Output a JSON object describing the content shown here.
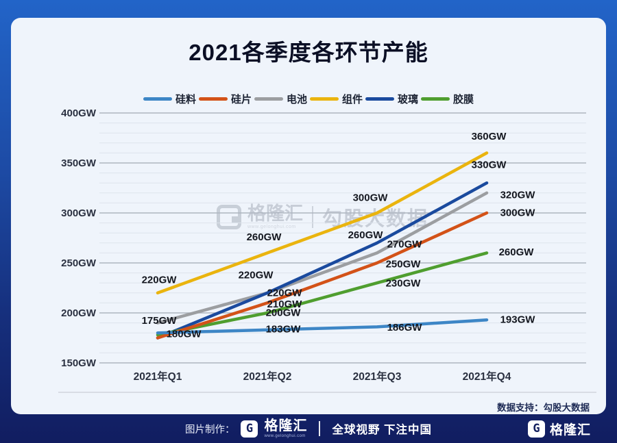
{
  "title": "2021各季度各环节产能",
  "watermark": {
    "logo_letter": "G",
    "brand": "格隆汇",
    "site": "www.gelonghui.com",
    "partner": "勾股大数据"
  },
  "footer_card": {
    "label": "数据支持：勾股大数据"
  },
  "bottom_bar": {
    "made_by": "图片制作：",
    "logo_letter": "G",
    "brand": "格隆汇",
    "brand_site": "www.gelonghui.com",
    "slogan": "全球视野 下注中国",
    "right_logo_letter": "G",
    "right_brand": "格隆汇"
  },
  "chart_data": {
    "type": "line",
    "title": "2021各季度各环节产能",
    "unit": "GW",
    "categories": [
      "2021年Q1",
      "2021年Q2",
      "2021年Q3",
      "2021年Q4"
    ],
    "ylim": [
      150,
      400
    ],
    "ytick_step": 50,
    "minor_grid_step": 10,
    "grid": true,
    "legend_position": "top",
    "ytick_values": [
      400,
      350,
      300,
      250,
      200,
      150
    ],
    "ytick_labels": [
      "400GW",
      "350GW",
      "300GW",
      "250GW",
      "200GW",
      "150GW"
    ],
    "series": [
      {
        "name": "硅料",
        "color": "#3d86c6",
        "values": [
          180,
          183,
          186,
          193
        ],
        "labels": [
          "180GW",
          "183GW",
          "186GW",
          "193GW"
        ],
        "label_offsets": [
          [
            38,
            1
          ],
          [
            23,
            -2
          ],
          [
            40,
            0
          ],
          [
            45,
            -1
          ]
        ]
      },
      {
        "name": "硅片",
        "color": "#d35218",
        "values": [
          175,
          210,
          250,
          300
        ],
        "labels": [
          "175GW",
          "210GW",
          "250GW",
          "300GW"
        ],
        "label_offsets": [
          [
            2,
            -26
          ],
          [
            25,
            1
          ],
          [
            38,
            1
          ],
          [
            45,
            -1
          ]
        ]
      },
      {
        "name": "电池",
        "color": "#9c9ea1",
        "values": [
          190,
          220,
          260,
          320
        ],
        "labels": [
          null,
          "220GW",
          "260GW",
          "320GW"
        ],
        "label_offsets": [
          null,
          [
            -17,
            -27
          ],
          [
            -17,
            -27
          ],
          [
            45,
            2
          ]
        ]
      },
      {
        "name": "组件",
        "color": "#eab40e",
        "values": [
          220,
          260,
          300,
          360
        ],
        "labels": [
          "220GW",
          "260GW",
          "300GW",
          "360GW"
        ],
        "label_offsets": [
          [
            2,
            -20
          ],
          [
            -5,
            -24
          ],
          [
            -10,
            -23
          ],
          [
            3,
            -25
          ]
        ]
      },
      {
        "name": "玻璃",
        "color": "#1a4a9e",
        "values": [
          175,
          220,
          270,
          330
        ],
        "labels": [
          null,
          "220GW",
          "270GW",
          "330GW"
        ],
        "label_offsets": [
          null,
          [
            25,
            -1
          ],
          [
            40,
            1
          ],
          [
            3,
            -27
          ]
        ]
      },
      {
        "name": "胶膜",
        "color": "#4f9e2f",
        "values": [
          178,
          200,
          230,
          260
        ],
        "labels": [
          null,
          "200GW",
          "230GW",
          "260GW"
        ],
        "label_offsets": [
          null,
          [
            23,
            -1
          ],
          [
            38,
            0
          ],
          [
            43,
            -2
          ]
        ]
      }
    ]
  }
}
